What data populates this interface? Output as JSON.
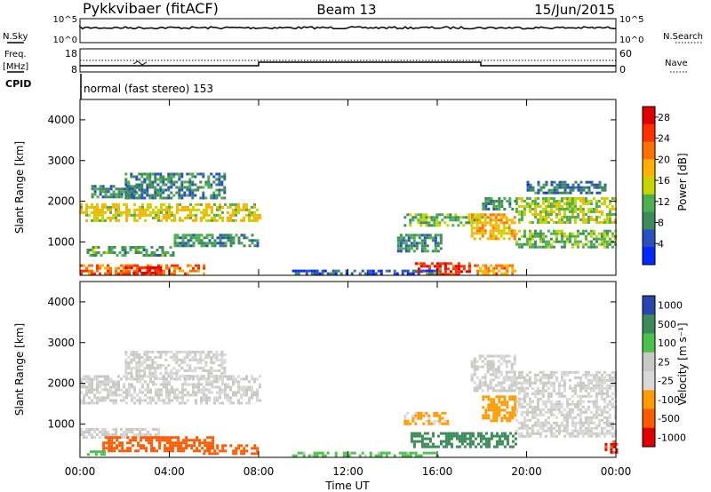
{
  "header": {
    "radar": "Pykkvibaer (fitACF)",
    "beam": "Beam 13",
    "date": "15/Jun/2015"
  },
  "noise_panel": {
    "left_label": "N.Sky",
    "right_label": "N.Search",
    "ticks_left": [
      "10^5",
      "10^0"
    ],
    "ticks_right": [
      "10^5",
      "10^0"
    ]
  },
  "freq_panel": {
    "left_label": "Freq.",
    "left_unit": "[MHz]",
    "right_label": "Nave",
    "ticks_left": [
      "18",
      "8"
    ],
    "ticks_right": [
      "60",
      "0"
    ]
  },
  "cpid": {
    "label": "CPID",
    "value": "normal (fast stereo) 153"
  },
  "colors": {
    "power": [
      "#0028ff",
      "#2a4fc0",
      "#3d8a5a",
      "#4caf50",
      "#c8d400",
      "#ffb000",
      "#ff7000",
      "#ff3000",
      "#e00000"
    ],
    "velocity": [
      "#e00000",
      "#ff5a00",
      "#ff9a00",
      "#d8d8d8",
      "#c9c9c4",
      "#4cc24c",
      "#3a8a5a",
      "#2a45b0"
    ]
  },
  "chart_data": [
    {
      "type": "heatmap",
      "name": "power",
      "ylabel": "Slant Range [km]",
      "ylim": [
        180,
        4500
      ],
      "yticks": [
        "1000",
        "2000",
        "3000",
        "4000"
      ],
      "xlim_hours": [
        0,
        24
      ],
      "colorbar_label": "Power [dB]",
      "colorbar_ticks": [
        "4",
        "8",
        "12",
        "16",
        "20",
        "24",
        "28"
      ],
      "colorbar_range": [
        0,
        30
      ],
      "regions": [
        {
          "t": [
            0.0,
            8.1
          ],
          "r": [
            1500,
            1950
          ],
          "v": 16
        },
        {
          "t": [
            2.0,
            6.5
          ],
          "r": [
            2100,
            2700
          ],
          "v": 8
        },
        {
          "t": [
            0.5,
            2.5
          ],
          "r": [
            2100,
            2400
          ],
          "v": 8
        },
        {
          "t": [
            0.0,
            5.5
          ],
          "r": [
            200,
            450
          ],
          "v": 22
        },
        {
          "t": [
            2.0,
            3.6
          ],
          "r": [
            220,
            400
          ],
          "v": 28
        },
        {
          "t": [
            0.3,
            4.2
          ],
          "r": [
            700,
            900
          ],
          "v": 10
        },
        {
          "t": [
            4.2,
            8.0
          ],
          "r": [
            900,
            1200
          ],
          "v": 9
        },
        {
          "t": [
            14.2,
            16.2
          ],
          "r": [
            800,
            1200
          ],
          "v": 9
        },
        {
          "t": [
            15.0,
            17.4
          ],
          "r": [
            220,
            500
          ],
          "v": 26
        },
        {
          "t": [
            17.4,
            19.5
          ],
          "r": [
            250,
            450
          ],
          "v": 20
        },
        {
          "t": [
            14.5,
            18.0
          ],
          "r": [
            1400,
            1700
          ],
          "v": 12
        },
        {
          "t": [
            17.5,
            19.5
          ],
          "r": [
            1100,
            1700
          ],
          "v": 18
        },
        {
          "t": [
            19.5,
            24.0
          ],
          "r": [
            900,
            1300
          ],
          "v": 12
        },
        {
          "t": [
            19.5,
            24.0
          ],
          "r": [
            1500,
            2100
          ],
          "v": 14
        },
        {
          "t": [
            20.0,
            23.5
          ],
          "r": [
            2200,
            2500
          ],
          "v": 7
        },
        {
          "t": [
            18.0,
            19.5
          ],
          "r": [
            1800,
            2100
          ],
          "v": 9
        },
        {
          "t": [
            9.5,
            16.0
          ],
          "r": [
            200,
            320
          ],
          "v": 5
        }
      ]
    },
    {
      "type": "heatmap",
      "name": "velocity",
      "ylabel": "Slant Range [km]",
      "ylim": [
        180,
        4500
      ],
      "yticks": [
        "1000",
        "2000",
        "3000",
        "4000"
      ],
      "xlim_hours": [
        0,
        24
      ],
      "xticks": [
        "00:00",
        "04:00",
        "08:00",
        "12:00",
        "16:00",
        "20:00",
        "00:00"
      ],
      "xlabel": "Time UT",
      "colorbar_label": "Velocity [m s⁻¹]",
      "colorbar_ticks": [
        "1000",
        "500",
        "100",
        "25",
        "-25",
        "-100",
        "-500",
        "-1000"
      ],
      "regions": [
        {
          "t": [
            0.0,
            8.1
          ],
          "r": [
            1500,
            2200
          ],
          "v": 0
        },
        {
          "t": [
            2.0,
            6.5
          ],
          "r": [
            2100,
            2800
          ],
          "v": 0
        },
        {
          "t": [
            0.0,
            3.5
          ],
          "r": [
            700,
            900
          ],
          "v": 0
        },
        {
          "t": [
            1.0,
            6.0
          ],
          "r": [
            350,
            700
          ],
          "v": -400
        },
        {
          "t": [
            0.2,
            1.2
          ],
          "r": [
            250,
            350
          ],
          "v": 60
        },
        {
          "t": [
            5.5,
            8.0
          ],
          "r": [
            300,
            500
          ],
          "v": -150
        },
        {
          "t": [
            14.8,
            19.5
          ],
          "r": [
            450,
            800
          ],
          "v": 250
        },
        {
          "t": [
            14.5,
            16.5
          ],
          "r": [
            1000,
            1300
          ],
          "v": -30
        },
        {
          "t": [
            18.0,
            19.5
          ],
          "r": [
            1100,
            1700
          ],
          "v": -60
        },
        {
          "t": [
            19.5,
            24.0
          ],
          "r": [
            700,
            2300
          ],
          "v": 0
        },
        {
          "t": [
            17.5,
            19.5
          ],
          "r": [
            1800,
            2700
          ],
          "v": 0
        },
        {
          "t": [
            23.5,
            24.0
          ],
          "r": [
            300,
            600
          ],
          "v": -500
        },
        {
          "t": [
            9.5,
            16.0
          ],
          "r": [
            200,
            320
          ],
          "v": 40
        }
      ]
    }
  ]
}
